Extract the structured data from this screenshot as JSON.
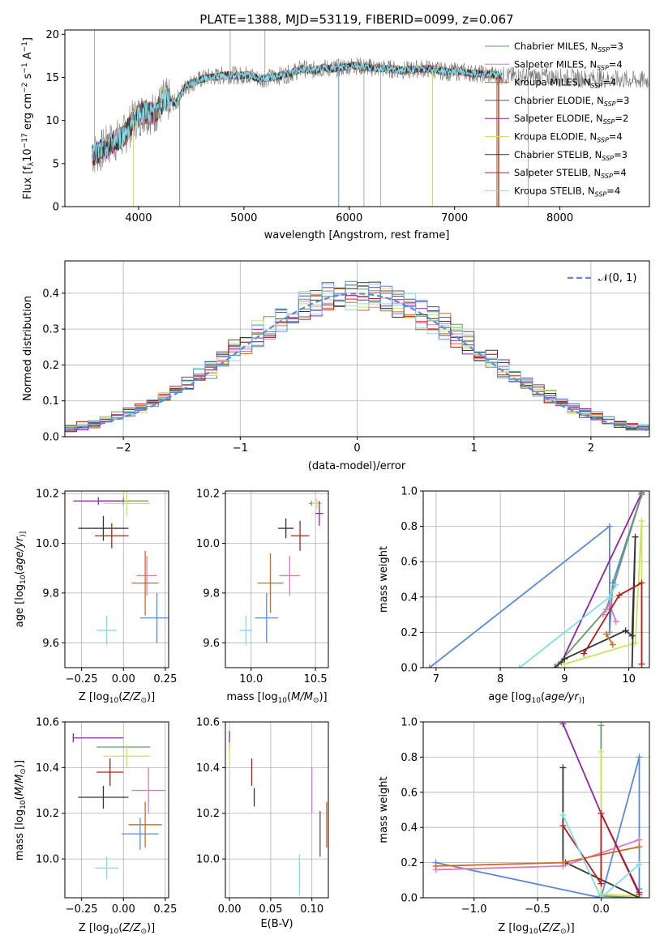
{
  "chart_data": [
    {
      "type": "line",
      "title": "PLATE=1388, MJD=53119, FIBERID=0099, z=0.067",
      "xlabel": "wavelength [Angstrom, rest frame]",
      "ylabel_parts": [
        "Flux [f",
        "λ",
        "10",
        "−17",
        " erg cm",
        "−2",
        " s",
        "−1",
        " A",
        "−1",
        "]"
      ],
      "xlim": [
        3300,
        8850
      ],
      "ylim": [
        0,
        20.5
      ],
      "xticks": [
        4000,
        5000,
        6000,
        7000,
        8000
      ],
      "yticks": [
        0,
        5,
        10,
        15,
        20
      ],
      "grid": false,
      "legend_position": "upper right",
      "series": [
        {
          "main": "Chabrier MILES, N",
          "sub": "SSP",
          "tail": "=3",
          "color": "#6a9a6a"
        },
        {
          "main": "Salpeter MILES, N",
          "sub": "SSP",
          "tail": "=4",
          "color": "#e377c2"
        },
        {
          "main": "Kroupa MILES, N",
          "sub": "SSP",
          "tail": "=4",
          "color": "#d2691e"
        },
        {
          "main": "Chabrier ELODIE, N",
          "sub": "SSP",
          "tail": "=3",
          "color": "#555555"
        },
        {
          "main": "Salpeter ELODIE, N",
          "sub": "SSP",
          "tail": "=2",
          "color": "#8e24aa"
        },
        {
          "main": "Kroupa ELODIE, N",
          "sub": "SSP",
          "tail": "=4",
          "color": "#d4e157"
        },
        {
          "main": "Chabrier STELIB, N",
          "sub": "SSP",
          "tail": "=3",
          "color": "#333333"
        },
        {
          "main": "Salpeter STELIB, N",
          "sub": "SSP",
          "tail": "=4",
          "color": "#b71c1c"
        },
        {
          "main": "Kroupa STELIB, N",
          "sub": "SSP",
          "tail": "=4",
          "color": "#80deea"
        }
      ],
      "observed_color": "#777777",
      "model_x": [
        3550,
        3650,
        3750,
        3850,
        3950,
        4050,
        4150,
        4250,
        4350,
        4450,
        4550,
        4650,
        4750,
        4850,
        4950,
        5050,
        5150,
        5250,
        5350,
        5450,
        5550,
        5650,
        5750,
        5850,
        5950,
        6050,
        6150,
        6250,
        6350,
        6450,
        6550,
        6650,
        6750,
        6850,
        6950,
        7050,
        7150,
        7250,
        7350,
        7450
      ],
      "model_flux": [
        6.0,
        6.5,
        7.5,
        8.0,
        10.0,
        11.0,
        10.8,
        12.5,
        12.0,
        14.0,
        14.6,
        15.0,
        15.1,
        15.3,
        15.2,
        15.3,
        14.8,
        15.0,
        15.2,
        15.5,
        16.0,
        15.8,
        16.1,
        16.0,
        16.2,
        16.4,
        16.2,
        16.1,
        16.0,
        15.9,
        15.8,
        16.0,
        16.0,
        15.8,
        15.6,
        15.7,
        15.5,
        15.4,
        15.3,
        15.2
      ]
    },
    {
      "type": "line",
      "xlabel": "(data-model)/error",
      "ylabel": "Normed distribution",
      "xlim": [
        -2.5,
        2.5
      ],
      "ylim": [
        0,
        0.49
      ],
      "xticks": [
        -2,
        -1,
        0,
        1,
        2
      ],
      "yticks": [
        0.0,
        0.1,
        0.2,
        0.3,
        0.4
      ],
      "grid": true,
      "legend_position": "upper right",
      "reference": {
        "label": "𝒩(0, 1)",
        "color": "#5b8bd6",
        "mean": 0,
        "sigma": 1
      },
      "bin_width": 0.1,
      "bin_start": -2.5,
      "series_colors": [
        "#6a9a6a",
        "#e377c2",
        "#d2691e",
        "#555555",
        "#8e24aa",
        "#d4e157",
        "#333333",
        "#b71c1c",
        "#80deea",
        "#5b8bd6"
      ]
    },
    {
      "type": "scatter",
      "subtype": "errorbar",
      "xlabel_parts": [
        "Z [log",
        "10",
        "(",
        "Z/Z",
        "⊙",
        ")]"
      ],
      "ylabel_parts": [
        "age  [log",
        "10",
        "(",
        "age/yr",
        ")]"
      ],
      "xlim": [
        -0.35,
        0.27
      ],
      "ylim": [
        9.5,
        10.21
      ],
      "xticks": [
        -0.25,
        0.0,
        0.25
      ],
      "xtick_labels": [
        "−0.25",
        "0.00",
        "0.25"
      ],
      "yticks": [
        9.6,
        9.8,
        10.0,
        10.2
      ],
      "grid": true,
      "points": [
        {
          "x": 0.0,
          "y": 10.17,
          "xerr": 0.15,
          "yerr": 0.015,
          "color": "#6a9a6a"
        },
        {
          "x": -0.15,
          "y": 10.17,
          "xerr": 0.15,
          "yerr": 0.015,
          "color": "#8e24aa"
        },
        {
          "x": 0.02,
          "y": 10.16,
          "xerr": 0.14,
          "yerr": 0.05,
          "color": "#d4e157"
        },
        {
          "x": -0.12,
          "y": 10.06,
          "xerr": 0.15,
          "yerr": 0.05,
          "color": "#333333"
        },
        {
          "x": -0.07,
          "y": 10.03,
          "xerr": 0.1,
          "yerr": 0.05,
          "color": "#b71c1c"
        },
        {
          "x": 0.14,
          "y": 9.87,
          "xerr": 0.06,
          "yerr": 0.08,
          "color": "#e377c2"
        },
        {
          "x": 0.13,
          "y": 9.84,
          "xerr": 0.08,
          "yerr": 0.13,
          "color": "#d2691e"
        },
        {
          "x": 0.2,
          "y": 9.7,
          "xerr": 0.1,
          "yerr": 0.1,
          "color": "#5b8bd6"
        },
        {
          "x": -0.09,
          "y": 10.0,
          "xerr": 0.0,
          "yerr": 0.0,
          "color": "#555555"
        },
        {
          "x": -0.1,
          "y": 9.65,
          "xerr": 0.06,
          "yerr": 0.06,
          "color": "#80deea"
        }
      ]
    },
    {
      "type": "scatter",
      "subtype": "errorbar",
      "xlabel_parts": [
        "mass [log",
        "10",
        "(",
        "M/M",
        "⊙",
        ")]"
      ],
      "xlim": [
        9.8,
        10.6
      ],
      "ylim": [
        9.5,
        10.21
      ],
      "xticks": [
        10.0,
        10.5
      ],
      "xtick_labels": [
        "10.0",
        "10.5"
      ],
      "yticks": [
        9.6,
        9.8,
        10.0,
        10.2
      ],
      "grid": true,
      "points": [
        {
          "x": 10.47,
          "y": 10.16,
          "xerr": 0.02,
          "yerr": 0.01,
          "color": "#6a9a6a"
        },
        {
          "x": 10.51,
          "y": 10.16,
          "xerr": 0.04,
          "yerr": 0.02,
          "color": "#d4e157"
        },
        {
          "x": 10.53,
          "y": 10.12,
          "xerr": 0.03,
          "yerr": 0.05,
          "color": "#8e24aa"
        },
        {
          "x": 10.27,
          "y": 10.06,
          "xerr": 0.06,
          "yerr": 0.04,
          "color": "#333333"
        },
        {
          "x": 10.38,
          "y": 10.03,
          "xerr": 0.07,
          "yerr": 0.06,
          "color": "#b71c1c"
        },
        {
          "x": 10.3,
          "y": 9.87,
          "xerr": 0.08,
          "yerr": 0.08,
          "color": "#e377c2"
        },
        {
          "x": 10.15,
          "y": 9.84,
          "xerr": 0.1,
          "yerr": 0.12,
          "color": "#d2691e"
        },
        {
          "x": 10.12,
          "y": 9.7,
          "xerr": 0.09,
          "yerr": 0.1,
          "color": "#5b8bd6"
        },
        {
          "x": 9.96,
          "y": 9.65,
          "xerr": 0.05,
          "yerr": 0.06,
          "color": "#80deea"
        }
      ]
    },
    {
      "type": "line",
      "xlabel_parts": [
        "age  [log",
        "10",
        "(",
        "age/yr",
        ")]"
      ],
      "ylabel": "mass weight",
      "xlim": [
        6.8,
        10.32
      ],
      "ylim": [
        0,
        1.0
      ],
      "xticks": [
        7,
        8,
        9,
        10
      ],
      "yticks": [
        0.0,
        0.2,
        0.4,
        0.6,
        0.8,
        1.0
      ],
      "grid": true,
      "series": [
        {
          "color": "#5b8bd6",
          "x": [
            6.9,
            9.7,
            9.7,
            9.75,
            10.2
          ],
          "y": [
            0.0,
            0.8,
            0.2,
            0.48,
            0.98
          ]
        },
        {
          "color": "#8e24aa",
          "x": [
            8.95,
            10.2
          ],
          "y": [
            0.03,
            0.99
          ]
        },
        {
          "color": "#6a9a6a",
          "x": [
            8.9,
            9.65,
            10.2
          ],
          "y": [
            0.02,
            0.33,
            0.98
          ]
        },
        {
          "color": "#d4e157",
          "x": [
            9.0,
            10.1,
            10.2,
            10.2
          ],
          "y": [
            0.02,
            0.14,
            0.83,
            0.0
          ]
        },
        {
          "color": "#333333",
          "x": [
            8.85,
            9.0,
            9.95,
            10.05,
            10.1,
            10.05
          ],
          "y": [
            0.0,
            0.05,
            0.21,
            0.18,
            0.74,
            0.0
          ]
        },
        {
          "color": "#e377c2",
          "x": [
            9.6,
            9.7,
            9.8
          ],
          "y": [
            0.3,
            0.36,
            0.26
          ]
        },
        {
          "color": "#d2691e",
          "x": [
            9.65,
            9.75
          ],
          "y": [
            0.19,
            0.13
          ]
        },
        {
          "color": "#b71c1c",
          "x": [
            9.3,
            9.85,
            10.2,
            10.2
          ],
          "y": [
            0.08,
            0.41,
            0.48,
            0.02
          ]
        },
        {
          "color": "#80deea",
          "x": [
            8.3,
            9.7,
            9.8
          ],
          "y": [
            0.0,
            0.4,
            0.47
          ]
        }
      ]
    },
    {
      "type": "scatter",
      "subtype": "errorbar",
      "xlabel_parts": [
        "Z [log",
        "10",
        "(",
        "Z/Z",
        "⊙",
        ")]"
      ],
      "ylabel_parts": [
        "mass [log",
        "10",
        "(",
        "M/M",
        "⊙",
        ")]"
      ],
      "xlim": [
        -0.35,
        0.27
      ],
      "ylim": [
        9.83,
        10.6
      ],
      "xticks": [
        -0.25,
        0.0,
        0.25
      ],
      "xtick_labels": [
        "−0.25",
        "0.00",
        "0.25"
      ],
      "yticks": [
        10.0,
        10.2,
        10.4,
        10.6
      ],
      "grid": true,
      "points": [
        {
          "x": -0.3,
          "y": 10.53,
          "xerr": 0.0,
          "yerr": 0.02,
          "color": "#8e24aa",
          "xr": 0.3
        },
        {
          "x": 0.0,
          "y": 10.49,
          "xerr": 0.16,
          "yerr": 0.0,
          "color": "#6a9a6a"
        },
        {
          "x": 0.02,
          "y": 10.45,
          "xerr": 0.14,
          "yerr": 0.05,
          "color": "#d4e157"
        },
        {
          "x": -0.08,
          "y": 10.38,
          "xerr": 0.08,
          "yerr": 0.06,
          "color": "#b71c1c"
        },
        {
          "x": 0.15,
          "y": 10.3,
          "xerr": 0.1,
          "yerr": 0.1,
          "color": "#e377c2"
        },
        {
          "x": -0.12,
          "y": 10.27,
          "xerr": 0.15,
          "yerr": 0.05,
          "color": "#333333"
        },
        {
          "x": 0.13,
          "y": 10.15,
          "xerr": 0.1,
          "yerr": 0.1,
          "color": "#d2691e"
        },
        {
          "x": 0.1,
          "y": 10.11,
          "xerr": 0.11,
          "yerr": 0.07,
          "color": "#5b8bd6"
        },
        {
          "x": -0.1,
          "y": 9.96,
          "xerr": 0.07,
          "yerr": 0.05,
          "color": "#80deea"
        }
      ]
    },
    {
      "type": "scatter",
      "subtype": "errorbar",
      "xlabel": "E(B-V)",
      "xlim": [
        -0.005,
        0.12
      ],
      "ylim": [
        9.83,
        10.6
      ],
      "xticks": [
        0.0,
        0.05,
        0.1
      ],
      "xtick_labels": [
        "0.00",
        "0.05",
        "0.10"
      ],
      "yticks": [
        10.0,
        10.2,
        10.4,
        10.6
      ],
      "grid": true,
      "points": [
        {
          "x": 0.0,
          "y": 10.52,
          "xerr": 0.0,
          "yerr": 0.04,
          "color": "#8e24aa"
        },
        {
          "x": 0.0,
          "y": 10.46,
          "xerr": 0.0,
          "yerr": 0.05,
          "color": "#d4e157"
        },
        {
          "x": 0.027,
          "y": 10.38,
          "xerr": 0.0,
          "yerr": 0.06,
          "color": "#b71c1c"
        },
        {
          "x": 0.03,
          "y": 10.27,
          "xerr": 0.0,
          "yerr": 0.04,
          "color": "#333333"
        },
        {
          "x": 0.1,
          "y": 10.3,
          "xerr": 0.0,
          "yerr": 0.1,
          "color": "#e377c2"
        },
        {
          "x": 0.11,
          "y": 10.11,
          "xerr": 0.0,
          "yerr": 0.1,
          "color": "#555555"
        },
        {
          "x": 0.118,
          "y": 10.15,
          "xerr": 0.0,
          "yerr": 0.1,
          "color": "#d2691e"
        },
        {
          "x": 0.085,
          "y": 9.93,
          "xerr": 0.0,
          "yerr": 0.09,
          "color": "#80deea"
        }
      ]
    },
    {
      "type": "line",
      "xlabel_parts": [
        "Z [log",
        "10",
        "(",
        "Z/Z",
        "⊙",
        ")]"
      ],
      "ylabel": "mass weight",
      "xlim": [
        -1.4,
        0.38
      ],
      "ylim": [
        0,
        1.0
      ],
      "xticks": [
        -1.0,
        -0.5,
        0.0
      ],
      "xtick_labels": [
        "−1.0",
        "−0.5",
        "0.0"
      ],
      "yticks": [
        0.0,
        0.2,
        0.4,
        0.6,
        0.8,
        1.0
      ],
      "grid": true,
      "series": [
        {
          "color": "#5b8bd6",
          "x": [
            -1.3,
            0.0,
            0.3,
            0.3
          ],
          "y": [
            0.2,
            0.0,
            0.8,
            0.05
          ]
        },
        {
          "color": "#8e24aa",
          "x": [
            -0.3,
            0.0,
            0.3
          ],
          "y": [
            0.99,
            0.48,
            0.03
          ]
        },
        {
          "color": "#6a9a6a",
          "x": [
            0.0,
            0.0,
            0.3
          ],
          "y": [
            0.98,
            0.01,
            0.0
          ]
        },
        {
          "color": "#d4e157",
          "x": [
            0.0,
            0.0,
            0.3
          ],
          "y": [
            0.83,
            0.02,
            0.01
          ]
        },
        {
          "color": "#333333",
          "x": [
            -0.3,
            -0.3,
            -0.28,
            0.3
          ],
          "y": [
            0.74,
            0.2,
            0.2,
            0.0
          ]
        },
        {
          "color": "#e377c2",
          "x": [
            -1.3,
            -0.3,
            0.3
          ],
          "y": [
            0.16,
            0.18,
            0.33
          ]
        },
        {
          "color": "#d2691e",
          "x": [
            -1.3,
            -0.3,
            0.3
          ],
          "y": [
            0.18,
            0.2,
            0.29
          ]
        },
        {
          "color": "#b71c1c",
          "x": [
            -0.3,
            0.0,
            0.0,
            0.3
          ],
          "y": [
            0.41,
            0.08,
            0.48,
            0.02
          ]
        },
        {
          "color": "#80deea",
          "x": [
            -0.3,
            0.0,
            0.3
          ],
          "y": [
            0.47,
            0.0,
            0.19
          ]
        }
      ]
    }
  ]
}
